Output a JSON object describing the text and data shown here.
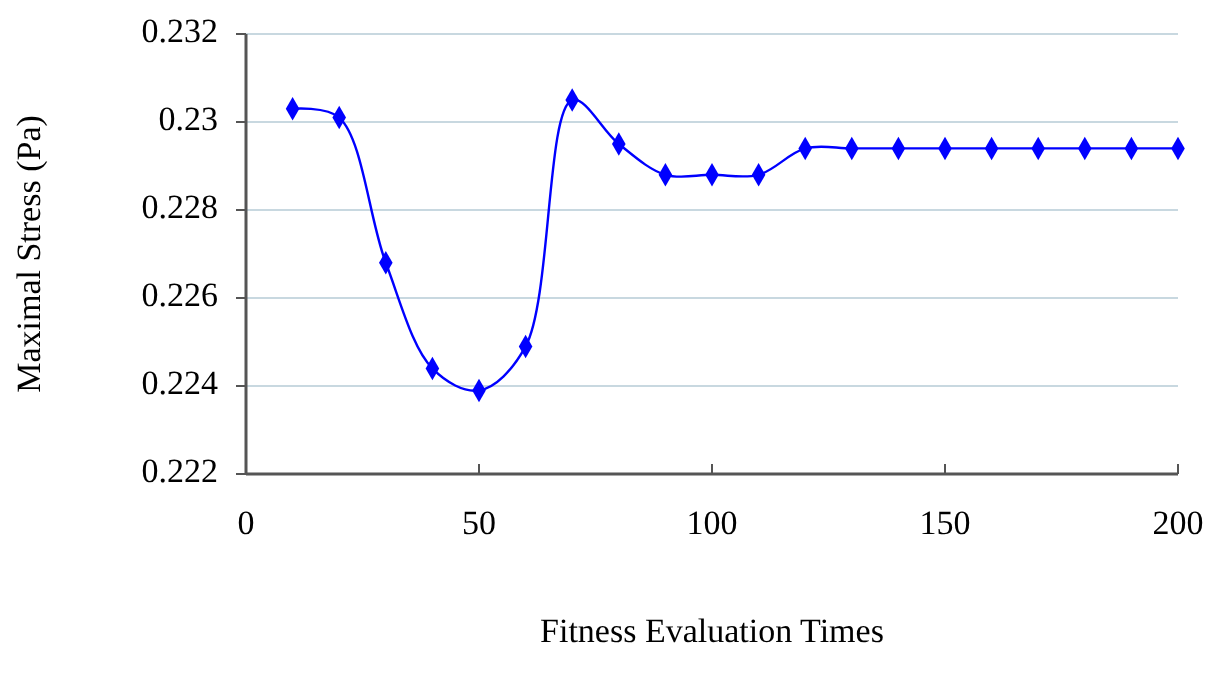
{
  "chart_data": {
    "type": "line",
    "xlabel": "Fitness Evaluation Times",
    "ylabel": "Maximal Stress (Pa)",
    "x": [
      10,
      20,
      30,
      40,
      50,
      60,
      70,
      80,
      90,
      100,
      110,
      120,
      130,
      140,
      150,
      160,
      170,
      180,
      190,
      200
    ],
    "series": [
      {
        "color": "#0000ff",
        "values": [
          0.2303,
          0.2301,
          0.2268,
          0.2244,
          0.2239,
          0.2249,
          0.2305,
          0.2295,
          0.2288,
          0.2288,
          0.2288,
          0.2294,
          0.2294,
          0.2294,
          0.2294,
          0.2294,
          0.2294,
          0.2294,
          0.2294,
          0.2294
        ]
      }
    ],
    "xlim": [
      0,
      200
    ],
    "xticks": [
      0,
      50,
      100,
      150,
      200
    ],
    "ylim": [
      0.222,
      0.232
    ],
    "yticks": [
      0.222,
      0.224,
      0.226,
      0.228,
      0.23,
      0.232
    ],
    "grid": "y",
    "marker": "diamond",
    "line_style": "solid"
  }
}
